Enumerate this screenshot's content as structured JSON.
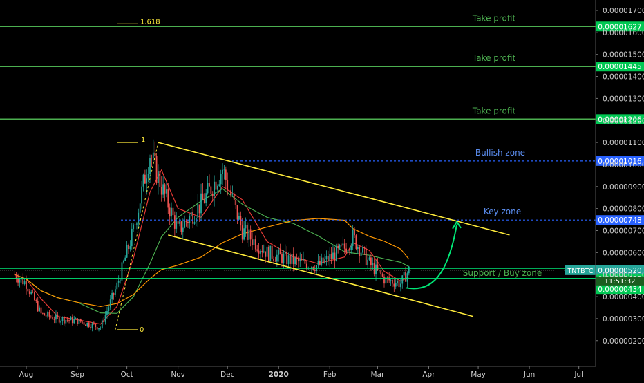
{
  "chart_data": {
    "type": "candlestick",
    "symbol": "TNTBTC",
    "timer": "11:51:32",
    "x_tick_labels": [
      "Aug",
      "Sep",
      "Oct",
      "Nov",
      "Dec",
      "2020",
      "Feb",
      "Mar",
      "Apr",
      "May",
      "Jun",
      "Jul"
    ],
    "y_tick_labels": [
      {
        "label": "0.00001700",
        "value": 1.7e-05
      },
      {
        "label": "0.00001600",
        "value": 1.6e-05
      },
      {
        "label": "0.00001500",
        "value": 1.5e-05
      },
      {
        "label": "0.00001400",
        "value": 1.4e-05
      },
      {
        "label": "0.00001300",
        "value": 1.3e-05
      },
      {
        "label": "0.00001200",
        "value": 1.2e-05
      },
      {
        "label": "0.00001100",
        "value": 1.1e-05
      },
      {
        "label": "0.00001000",
        "value": 1e-05
      },
      {
        "label": "0.00000900",
        "value": 9e-06
      },
      {
        "label": "0.00000800",
        "value": 8e-06
      },
      {
        "label": "0.00000700",
        "value": 7e-06
      },
      {
        "label": "0.00000600",
        "value": 6e-06
      },
      {
        "label": "0.00000500",
        "value": 5e-06
      },
      {
        "label": "0.00000400",
        "value": 4e-06
      },
      {
        "label": "0.00000300",
        "value": 3e-06
      },
      {
        "label": "0.00000200",
        "value": 2e-06
      }
    ],
    "horizontal_levels": [
      {
        "label": "Take profit",
        "value": 1.627e-05,
        "value_label": "0.00001627",
        "color": "#4caf50",
        "style": "solid"
      },
      {
        "label": "Take profit",
        "value": 1.445e-05,
        "value_label": "0.00001445",
        "color": "#4caf50",
        "style": "solid"
      },
      {
        "label": "Take profit",
        "value": 1.206e-05,
        "value_label": "0.00001206",
        "color": "#4caf50",
        "style": "solid"
      },
      {
        "label": "Bullish zone",
        "value": 1.016e-05,
        "value_label": "0.00001016",
        "color": "#2962ff",
        "style": "dashed"
      },
      {
        "label": "Key zone",
        "value": 7.48e-06,
        "value_label": "0.00000748",
        "color": "#2962ff",
        "style": "dashed"
      },
      {
        "label": "",
        "value": 5.2e-06,
        "value_label": "0.00000520",
        "color": "#00c853",
        "style": "solid"
      },
      {
        "label": "Support / Buy zone",
        "value": 4.82e-06,
        "value_label": "0.00000482",
        "color": "#00e676",
        "style": "solid"
      },
      {
        "label": "",
        "value": 4.34e-06,
        "value_label": "0.00000434",
        "color": "#00c853",
        "style": "solid"
      }
    ],
    "fib_labels": [
      "1.618",
      "1",
      "0"
    ],
    "close_series": [
      {
        "date": "2019-07-25",
        "close": 5e-06
      },
      {
        "date": "2019-08-01",
        "close": 4.6e-06
      },
      {
        "date": "2019-08-10",
        "close": 3.2e-06
      },
      {
        "date": "2019-08-20",
        "close": 3e-06
      },
      {
        "date": "2019-09-01",
        "close": 2.9e-06
      },
      {
        "date": "2019-09-15",
        "close": 2.6e-06
      },
      {
        "date": "2019-09-25",
        "close": 4.5e-06
      },
      {
        "date": "2019-10-05",
        "close": 7e-06
      },
      {
        "date": "2019-10-15",
        "close": 1.05e-05
      },
      {
        "date": "2019-10-22",
        "close": 9e-06
      },
      {
        "date": "2019-11-01",
        "close": 7e-06
      },
      {
        "date": "2019-11-15",
        "close": 8.2e-06
      },
      {
        "date": "2019-11-28",
        "close": 9.8e-06
      },
      {
        "date": "2019-12-10",
        "close": 7e-06
      },
      {
        "date": "2019-12-25",
        "close": 6e-06
      },
      {
        "date": "2020-01-10",
        "close": 5.6e-06
      },
      {
        "date": "2020-01-25",
        "close": 5.4e-06
      },
      {
        "date": "2020-02-10",
        "close": 6.2e-06
      },
      {
        "date": "2020-02-15",
        "close": 6.7e-06
      },
      {
        "date": "2020-02-25",
        "close": 5.5e-06
      },
      {
        "date": "2020-03-05",
        "close": 4.8e-06
      },
      {
        "date": "2020-03-15",
        "close": 4.6e-06
      },
      {
        "date": "2020-03-20",
        "close": 5.2e-06
      }
    ],
    "colors": {
      "up": "#26a69a",
      "down": "#ef5350",
      "channel": "#ffeb3b",
      "arrow": "#00e676",
      "ma_fast": "#e53935",
      "ma_mid": "#4caf50",
      "ma_slow": "#ff9800"
    }
  }
}
